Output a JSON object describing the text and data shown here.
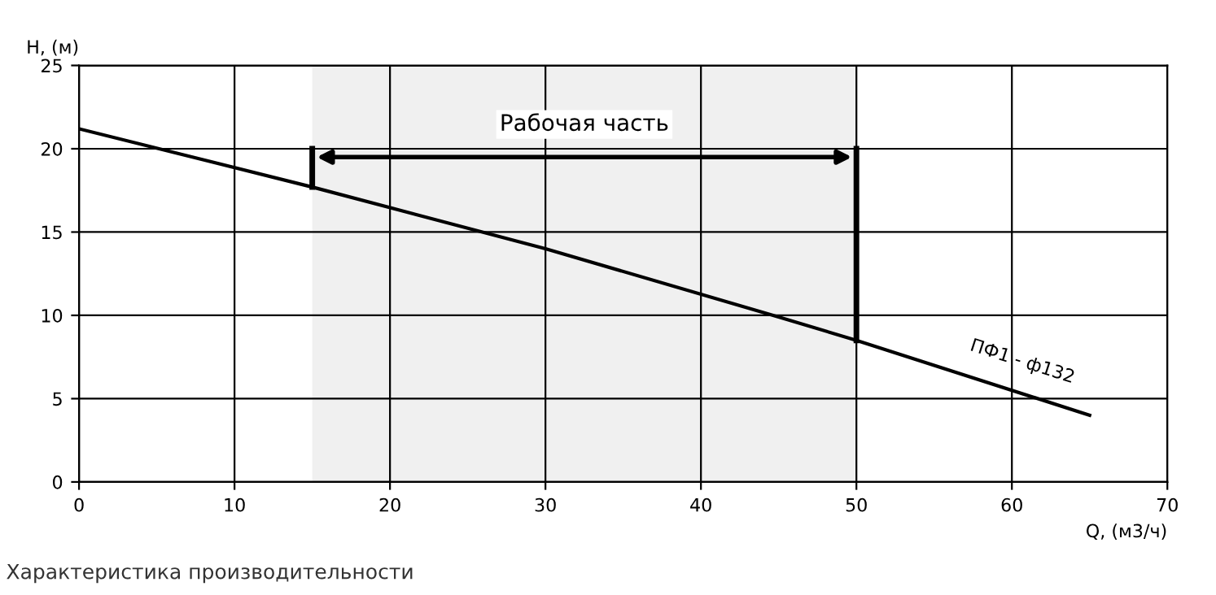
{
  "chart_data": {
    "type": "line",
    "xlabel": "Q, (м3/ч)",
    "ylabel": "H, (м)",
    "x": [
      0,
      15,
      30,
      45,
      50,
      65
    ],
    "series": [
      {
        "name": "ПФ1 - ф132",
        "color": "#000000",
        "values": [
          21.2,
          17.7,
          14.0,
          9.9,
          8.5,
          4.0
        ]
      }
    ],
    "xlim": [
      0,
      70
    ],
    "xticks": [
      0,
      10,
      20,
      30,
      40,
      50,
      60,
      70
    ],
    "ylim": [
      0,
      25
    ],
    "yticks": [
      0,
      5,
      10,
      15,
      20,
      25
    ],
    "grid": true,
    "marker": "none",
    "line_style": "solid",
    "bands": [
      {
        "axis": "x",
        "from": 15,
        "to": 50,
        "label": "Рабочая часть",
        "color": "#000000"
      }
    ],
    "annotations": [
      "Характеристика производительности"
    ]
  }
}
